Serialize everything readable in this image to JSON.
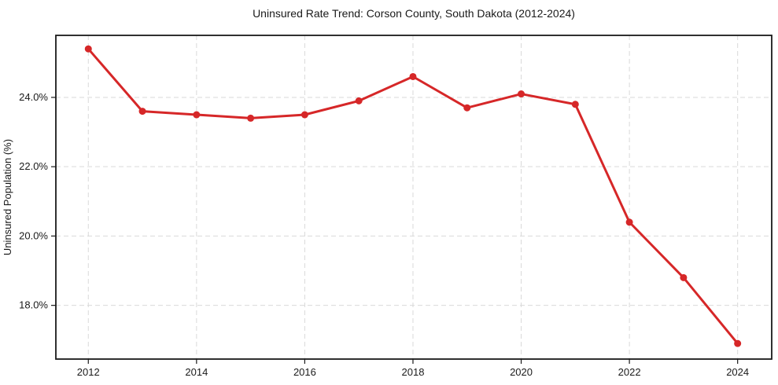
{
  "chart_data": {
    "type": "line",
    "title": "Uninsured Rate Trend: Corson County, South Dakota (2012-2024)",
    "xlabel": "",
    "ylabel": "Uninsured Population (%)",
    "x": [
      2012,
      2013,
      2014,
      2015,
      2016,
      2017,
      2018,
      2019,
      2020,
      2021,
      2022,
      2023,
      2024
    ],
    "values": [
      25.4,
      23.6,
      23.5,
      23.4,
      23.5,
      23.9,
      24.6,
      23.7,
      24.1,
      23.8,
      20.4,
      18.8,
      16.9
    ],
    "x_ticks": [
      2012,
      2014,
      2016,
      2018,
      2020,
      2022,
      2024
    ],
    "y_ticks": [
      18.0,
      20.0,
      22.0,
      24.0
    ],
    "y_tick_suffix": "%",
    "xlim": [
      2011.4,
      2024.63
    ],
    "ylim": [
      16.45,
      25.79
    ],
    "grid": "dashed",
    "legend": "none",
    "marker": "circle",
    "colors": {
      "line": "#d62728",
      "grid": "#d9d9d9",
      "frame": "#1a1a1a",
      "text": "#1a1a1a",
      "background": "#ffffff"
    }
  }
}
